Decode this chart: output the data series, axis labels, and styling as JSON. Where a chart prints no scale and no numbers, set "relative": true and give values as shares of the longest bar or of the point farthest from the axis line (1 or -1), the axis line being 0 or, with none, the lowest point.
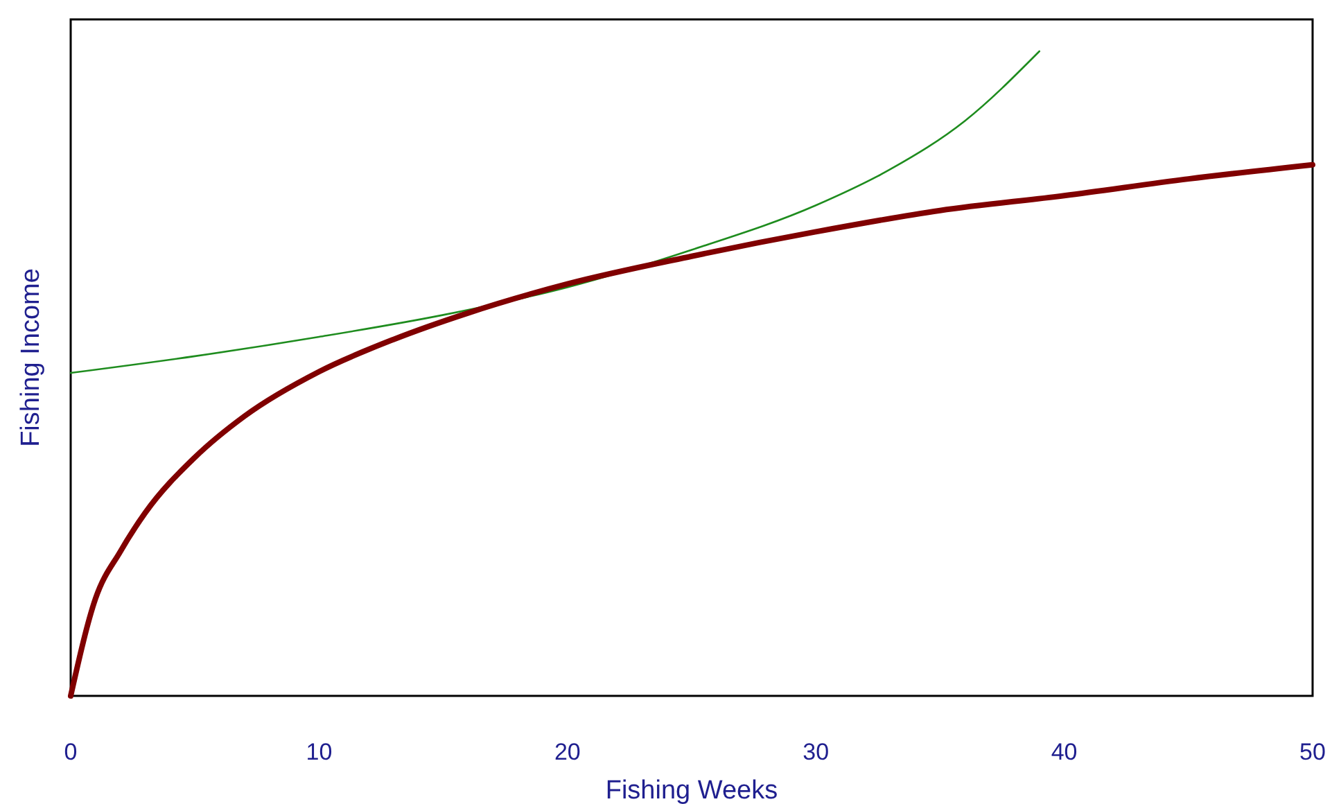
{
  "chart_data": {
    "type": "line",
    "xlabel": "Fishing Weeks",
    "ylabel": "Fishing Income",
    "relative": true,
    "xlim": [
      0,
      50
    ],
    "xticks": [
      0,
      10,
      20,
      30,
      40,
      50
    ],
    "series": [
      {
        "color": "#1e8c1e",
        "x": [
          0,
          5,
          10,
          15,
          20,
          25,
          30,
          33,
          36,
          39
        ],
        "values": [
          0.501,
          0.527,
          0.557,
          0.591,
          0.634,
          0.692,
          0.761,
          0.817,
          0.892,
          1.0
        ]
      },
      {
        "color": "#800000",
        "x": [
          0,
          1,
          2,
          3,
          5,
          7,
          10,
          13,
          16,
          20,
          25,
          30,
          35,
          40,
          45,
          50
        ],
        "values": [
          0,
          0.151,
          0.224,
          0.284,
          0.37,
          0.434,
          0.503,
          0.553,
          0.594,
          0.639,
          0.682,
          0.72,
          0.753,
          0.776,
          0.802,
          0.824
        ]
      }
    ]
  }
}
